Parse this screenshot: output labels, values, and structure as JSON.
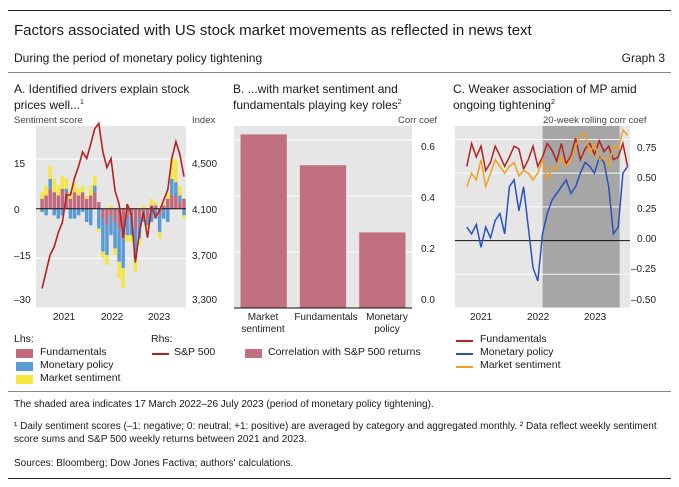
{
  "header": {
    "title": "Factors associated with US stock market movements as reflected in news text",
    "subtitle": "During the period of monetary policy tightening",
    "graph_label": "Graph 3"
  },
  "colors": {
    "fundamentals": "#c06b7e",
    "monetary": "#5b9bd5",
    "sentiment": "#f5e642",
    "sp500": "#b22222",
    "mp_line": "#2a52be",
    "ms_line": "#f0a020",
    "panel_bg": "#e6e6e6",
    "shade": "#a6a6a6",
    "bar_b": "#c07080"
  },
  "panelA": {
    "title": "A. Identified drivers explain stock prices well...",
    "title_sup": "1",
    "lhs_label": "Sentiment score",
    "rhs_label": "Index",
    "lhs_ticks": [
      "15",
      "0",
      "–15",
      "–30"
    ],
    "rhs_ticks": [
      "4,500",
      "4,100",
      "3,700",
      "3,300"
    ],
    "x_ticks": [
      "2021",
      "2022",
      "2023"
    ],
    "legend": {
      "lhs_title": "Lhs:",
      "rhs_title": "Rhs:",
      "fundamentals": "Fundamentals",
      "monetary": "Monetary policy",
      "sentiment": "Market sentiment",
      "sp500": "S&P 500"
    }
  },
  "panelB": {
    "title": "B. ...with market sentiment and fundamentals playing key roles",
    "title_sup": "2",
    "axis_label": "Corr coef",
    "y_ticks": [
      "0.6",
      "0.4",
      "0.2",
      "0.0"
    ],
    "categories": [
      "Market sentiment",
      "Fundamentals",
      "Monetary policy"
    ],
    "legend_label": "Correlation with S&P 500 returns"
  },
  "panelC": {
    "title": "C. Weaker association of MP amid ongoing tightening",
    "title_sup": "2",
    "axis_label": "20-week rolling corr coef",
    "y_ticks": [
      "0.75",
      "0.50",
      "0.25",
      "0.00",
      "–0.25",
      "–0.50"
    ],
    "x_ticks": [
      "2021",
      "2022",
      "2023"
    ],
    "legend": {
      "fundamentals": "Fundamentals",
      "monetary": "Monetary policy",
      "sentiment": "Market sentiment"
    }
  },
  "footnotes": {
    "shaded": "The shaded area indicates 17 March 2022–26 July 2023 (period of monetary policy tightening).",
    "notes": "¹ Daily sentiment scores (–1: negative; 0: neutral; +1: positive) are averaged by category and aggregated monthly.  ² Data reflect weekly sentiment score sums and S&P 500 weekly returns between 2021 and 2023.",
    "sources": "Sources: Bloomberg; Dow Jones Factiva; authors' calculations."
  },
  "chart_data": [
    {
      "type": "bar",
      "panel": "A",
      "title": "A. Identified drivers explain stock prices well...",
      "ylabel": "Sentiment score",
      "y2label": "Index",
      "ylim": [
        -30,
        25
      ],
      "y2lim": [
        3300,
        4700
      ],
      "x_start": "2020-09",
      "x_end": "2023-10",
      "x_ticks": [
        "2021",
        "2022",
        "2023"
      ],
      "months": [
        "2020-10",
        "2020-11",
        "2020-12",
        "2021-01",
        "2021-02",
        "2021-03",
        "2021-04",
        "2021-05",
        "2021-06",
        "2021-07",
        "2021-08",
        "2021-09",
        "2021-10",
        "2021-11",
        "2021-12",
        "2022-01",
        "2022-02",
        "2022-03",
        "2022-04",
        "2022-05",
        "2022-06",
        "2022-07",
        "2022-08",
        "2022-09",
        "2022-10",
        "2022-11",
        "2022-12",
        "2023-01",
        "2023-02",
        "2023-03",
        "2023-04",
        "2023-05",
        "2023-06",
        "2023-07",
        "2023-08",
        "2023-09"
      ],
      "stacked": true,
      "series": [
        {
          "name": "Fundamentals",
          "values": [
            3,
            4,
            6,
            5,
            4,
            6,
            5,
            3,
            5,
            4,
            5,
            3,
            4,
            5,
            2,
            -3,
            -5,
            -2,
            -4,
            -6,
            -9,
            -3,
            -2,
            -6,
            -3,
            -1,
            -3,
            1,
            1,
            -2,
            1,
            3,
            4,
            4,
            2,
            3
          ]
        },
        {
          "name": "Monetary policy",
          "values": [
            -1,
            -2,
            3,
            -2,
            -3,
            -2,
            1,
            -3,
            -3,
            -2,
            -1,
            -4,
            -5,
            2,
            -6,
            -10,
            -9,
            -6,
            -8,
            -10,
            -9,
            -5,
            -6,
            -9,
            -6,
            -3,
            -2,
            -4,
            -3,
            -5,
            -3,
            -4,
            5,
            4,
            2,
            -2
          ]
        },
        {
          "name": "Market sentiment",
          "values": [
            2,
            3,
            4,
            4,
            3,
            4,
            3,
            2,
            3,
            2,
            2,
            1,
            3,
            3,
            -1,
            -2,
            -3,
            1,
            -2,
            -5,
            -6,
            -2,
            -2,
            -4,
            -2,
            1,
            -1,
            2,
            1,
            -2,
            1,
            2,
            6,
            7,
            3,
            -1
          ]
        },
        {
          "name": "S&P 500",
          "axis": "rhs",
          "values": [
            3450,
            3580,
            3710,
            3770,
            3880,
            3960,
            4170,
            4170,
            4300,
            4390,
            4500,
            4450,
            4560,
            4680,
            4720,
            4500,
            4380,
            4450,
            4200,
            4100,
            3840,
            4100,
            4020,
            3650,
            3880,
            4040,
            3840,
            4080,
            4000,
            4050,
            4130,
            4210,
            4450,
            4580,
            4480,
            4310
          ]
        }
      ]
    },
    {
      "type": "bar",
      "panel": "B",
      "title": "B. ...with market sentiment and fundamentals playing key roles",
      "ylabel": "Corr coef",
      "ylim": [
        0,
        0.65
      ],
      "categories": [
        "Market sentiment",
        "Fundamentals",
        "Monetary policy"
      ],
      "series": [
        {
          "name": "Correlation with S&P 500 returns",
          "values": [
            0.62,
            0.51,
            0.27
          ]
        }
      ]
    },
    {
      "type": "line",
      "panel": "C",
      "title": "C. Weaker association of MP amid ongoing tightening",
      "ylabel": "20-week rolling corr coef",
      "ylim": [
        -0.5,
        0.85
      ],
      "x_start": "2020-09",
      "x_end": "2023-10",
      "x_ticks": [
        "2021",
        "2022",
        "2023"
      ],
      "shaded_period": [
        "2022-03-17",
        "2023-07-26"
      ],
      "x": [
        "2020-11",
        "2020-12",
        "2021-01",
        "2021-02",
        "2021-03",
        "2021-04",
        "2021-05",
        "2021-06",
        "2021-07",
        "2021-08",
        "2021-09",
        "2021-10",
        "2021-11",
        "2021-12",
        "2022-01",
        "2022-02",
        "2022-03",
        "2022-04",
        "2022-05",
        "2022-06",
        "2022-07",
        "2022-08",
        "2022-09",
        "2022-10",
        "2022-11",
        "2022-12",
        "2023-01",
        "2023-02",
        "2023-03",
        "2023-04",
        "2023-05",
        "2023-06",
        "2023-07",
        "2023-08",
        "2023-09"
      ],
      "series": [
        {
          "name": "Fundamentals",
          "values": [
            0.55,
            0.72,
            0.62,
            0.7,
            0.52,
            0.58,
            0.7,
            0.63,
            0.55,
            0.62,
            0.7,
            0.68,
            0.53,
            0.6,
            0.7,
            0.55,
            0.62,
            0.72,
            0.67,
            0.59,
            0.72,
            0.57,
            0.63,
            0.76,
            0.6,
            0.68,
            0.72,
            0.64,
            0.74,
            0.66,
            0.7,
            0.6,
            0.62,
            0.72,
            0.55
          ]
        },
        {
          "name": "Monetary policy",
          "values": [
            0.1,
            0.05,
            0.12,
            -0.05,
            0.1,
            0.02,
            0.15,
            0.2,
            0.05,
            0.4,
            0.45,
            0.22,
            0.4,
            0.1,
            -0.2,
            -0.3,
            0.05,
            0.2,
            0.3,
            0.35,
            0.4,
            0.45,
            0.35,
            0.4,
            0.5,
            0.58,
            0.55,
            0.5,
            0.62,
            0.58,
            0.4,
            0.05,
            0.1,
            0.5,
            0.55
          ]
        },
        {
          "name": "Market sentiment",
          "values": [
            0.4,
            0.5,
            0.45,
            0.6,
            0.4,
            0.5,
            0.6,
            0.55,
            0.5,
            0.55,
            0.58,
            0.48,
            0.52,
            0.5,
            0.45,
            0.5,
            0.6,
            0.45,
            0.55,
            0.52,
            0.62,
            0.55,
            0.6,
            0.7,
            0.78,
            0.8,
            0.65,
            0.72,
            0.6,
            0.62,
            0.55,
            0.7,
            0.68,
            0.82,
            0.78
          ]
        }
      ]
    }
  ]
}
